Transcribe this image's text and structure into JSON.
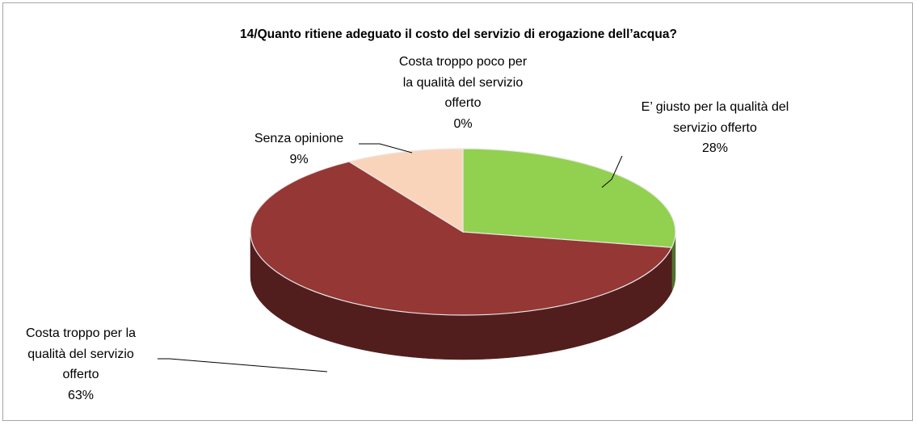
{
  "chart_data": {
    "type": "pie",
    "title": "14/Quanto ritiene adeguato il costo del servizio di erogazione dell’acqua?",
    "categories": [
      "Costa troppo poco per la qualità del servizio offerto",
      "E’ giusto per la qualità del servizio offerto",
      "Costa troppo per la qualità del servizio offerto",
      "Senza opinione"
    ],
    "values": [
      0,
      28,
      63,
      9
    ],
    "value_labels": [
      "0%",
      "28%",
      "63%",
      "9%"
    ],
    "colors": [
      "#8fc3dc",
      "#92d050",
      "#953735",
      "#fad4ba"
    ]
  }
}
